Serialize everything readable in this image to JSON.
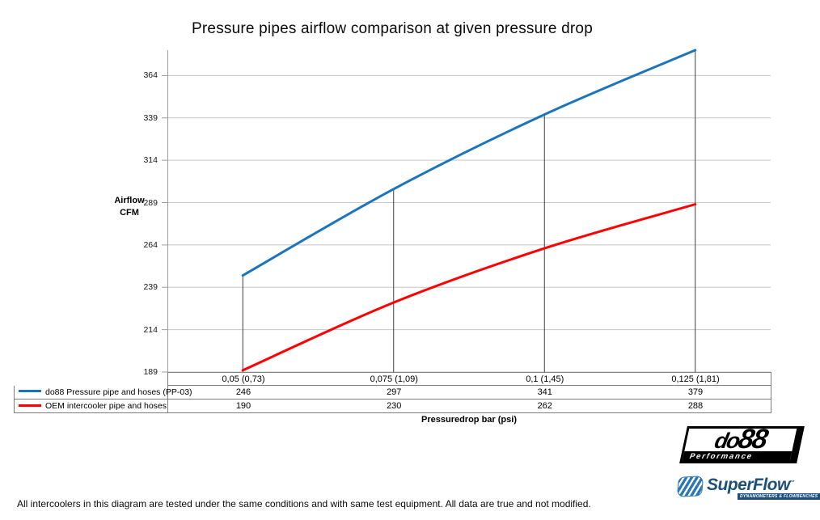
{
  "title": "Pressure pipes airflow comparison at given pressure drop",
  "chart_data": {
    "type": "line",
    "x_categories": [
      "0,05 (0,73)",
      "0,075 (1,09)",
      "0,1 (1,45)",
      "0,125 (1,81)"
    ],
    "series": [
      {
        "name": "do88 Pressure pipe and hoses (PP-03)",
        "color": "#1B75BC",
        "values": [
          246,
          297,
          341,
          379
        ]
      },
      {
        "name": "OEM intercooler pipe and hoses",
        "color": "#FF0000",
        "values": [
          190,
          230,
          262,
          288
        ]
      }
    ],
    "ylabel_lines": [
      "Airflow",
      "CFM"
    ],
    "xlabel": "Pressuredrop bar (psi)",
    "y_ticks": [
      189,
      214,
      239,
      264,
      289,
      314,
      339,
      364
    ],
    "ylim": [
      189,
      379
    ],
    "grid": "horizontal-major",
    "drop_lines": true,
    "smoothed_lines": true,
    "legend_position": "data-table-left"
  },
  "colors": {
    "gridline": "#C6C6C6",
    "axis": "#9C9C9C",
    "table_border": "#7F7F7F",
    "drop_line": "#404040"
  },
  "logos": {
    "do88": {
      "text_do": "do",
      "text_88": "88",
      "subtitle": "Performance"
    },
    "superflow": {
      "text": "SuperFlow",
      "tm": "™",
      "subtitle": "DYNAMOMETERS & FLOWBENCHES"
    }
  },
  "footnote": "All intercoolers in this diagram are tested under the same conditions and with same test equipment. All data are true and not modified."
}
